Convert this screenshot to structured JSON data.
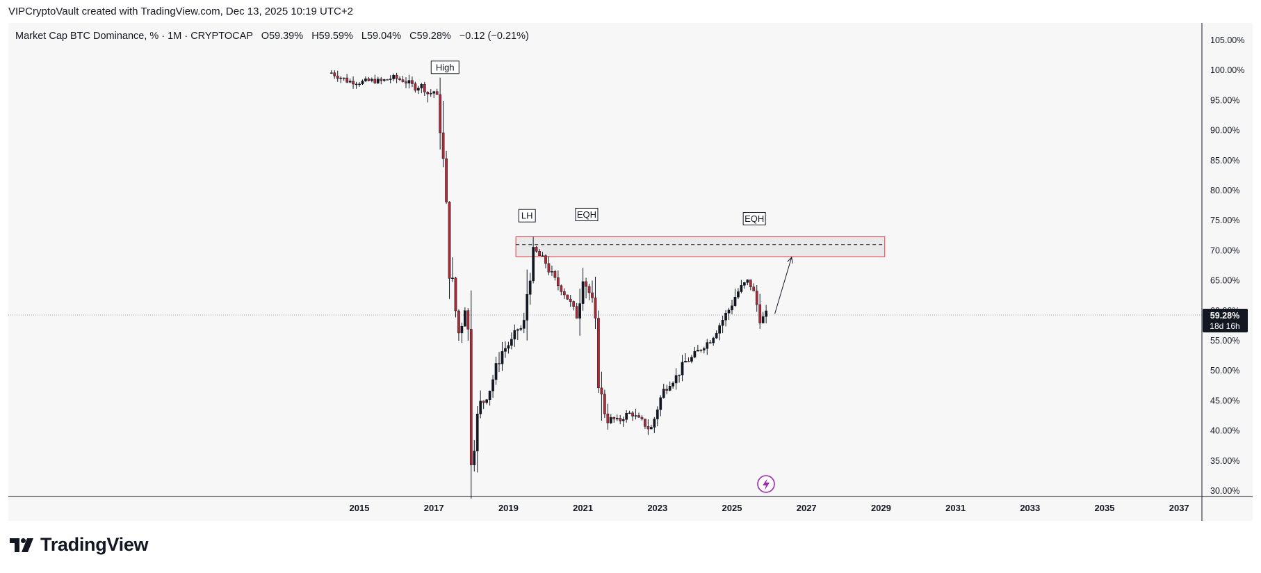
{
  "header": {
    "attribution": "VIPCryptoVault created with TradingView.com, Dec 13, 2025 10:19 UTC+2"
  },
  "legend": {
    "symbol": "Market Cap BTC Dominance, % · 1M · CRYPTOCAP",
    "open": "O59.39%",
    "high": "H59.59%",
    "low": "L59.04%",
    "close": "C59.28%",
    "change": "−0.12 (−0.21%)"
  },
  "price_label": {
    "value": "59.28%",
    "countdown": "18d 16h"
  },
  "brand": {
    "name": "TradingView",
    "logo_icon": "tradingview-logo-icon"
  },
  "colors": {
    "up": "#131722",
    "down": "#b22833",
    "zone_border": "#e03b44",
    "background": "#f7f7f7"
  },
  "chart_data": {
    "type": "candlestick",
    "title": "",
    "xlabel": "",
    "ylabel": "",
    "xlim": [
      2013.6,
      2037.6
    ],
    "ylim": [
      29.5,
      107
    ],
    "x_ticks": [
      "2015",
      "2017",
      "2019",
      "2021",
      "2023",
      "2025",
      "2027",
      "2029",
      "2031",
      "2033",
      "2035",
      "2037"
    ],
    "y_ticks": [
      "105.00%",
      "100.00%",
      "95.00%",
      "90.00%",
      "85.00%",
      "80.00%",
      "75.00%",
      "70.00%",
      "65.00%",
      "60.00%",
      "55.00%",
      "50.00%",
      "45.00%",
      "40.00%",
      "35.00%",
      "30.00%"
    ],
    "last_close": 59.28,
    "path": [
      [
        2014.25,
        99.6
      ],
      [
        2014.45,
        99.0
      ],
      [
        2014.7,
        98.2
      ],
      [
        2015.0,
        98.0
      ],
      [
        2015.3,
        98.3
      ],
      [
        2015.6,
        98.2
      ],
      [
        2015.9,
        98.8
      ],
      [
        2016.2,
        98.3
      ],
      [
        2016.5,
        97.2
      ],
      [
        2016.7,
        97.5
      ],
      [
        2016.85,
        96.0
      ],
      [
        2017.0,
        96.5
      ],
      [
        2017.13,
        94.5
      ],
      [
        2017.2,
        88.0
      ],
      [
        2017.28,
        82.0
      ],
      [
        2017.36,
        72.0
      ],
      [
        2017.45,
        66.0
      ],
      [
        2017.55,
        62.0
      ],
      [
        2017.65,
        56.0
      ],
      [
        2017.75,
        58.0
      ],
      [
        2017.85,
        62.0
      ],
      [
        2017.92,
        56.0
      ],
      [
        2018.0,
        40.0
      ],
      [
        2018.1,
        37.5
      ],
      [
        2018.2,
        44.0
      ],
      [
        2018.35,
        45.0
      ],
      [
        2018.5,
        47.0
      ],
      [
        2018.65,
        50.0
      ],
      [
        2018.8,
        53.0
      ],
      [
        2018.95,
        54.0
      ],
      [
        2019.1,
        55.0
      ],
      [
        2019.25,
        57.0
      ],
      [
        2019.4,
        57.0
      ],
      [
        2019.5,
        63.0
      ],
      [
        2019.6,
        67.5
      ],
      [
        2019.7,
        70.0
      ],
      [
        2019.85,
        69.0
      ],
      [
        2020.0,
        68.0
      ],
      [
        2020.15,
        66.0
      ],
      [
        2020.3,
        64.5
      ],
      [
        2020.45,
        63.5
      ],
      [
        2020.6,
        62.0
      ],
      [
        2020.75,
        60.0
      ],
      [
        2020.85,
        59.0
      ],
      [
        2021.0,
        67.0
      ],
      [
        2021.1,
        64.0
      ],
      [
        2021.2,
        62.5
      ],
      [
        2021.3,
        60.0
      ],
      [
        2021.38,
        52.0
      ],
      [
        2021.5,
        45.0
      ],
      [
        2021.65,
        42.0
      ],
      [
        2021.8,
        42.0
      ],
      [
        2021.95,
        41.5
      ],
      [
        2022.1,
        42.5
      ],
      [
        2022.3,
        43.0
      ],
      [
        2022.45,
        42.0
      ],
      [
        2022.6,
        41.5
      ],
      [
        2022.75,
        40.5
      ],
      [
        2022.85,
        40.5
      ],
      [
        2023.0,
        44.0
      ],
      [
        2023.15,
        46.5
      ],
      [
        2023.3,
        48.0
      ],
      [
        2023.45,
        48.5
      ],
      [
        2023.6,
        50.0
      ],
      [
        2023.75,
        51.5
      ],
      [
        2023.9,
        52.0
      ],
      [
        2024.05,
        53.0
      ],
      [
        2024.2,
        54.0
      ],
      [
        2024.4,
        55.0
      ],
      [
        2024.6,
        57.0
      ],
      [
        2024.8,
        59.0
      ],
      [
        2024.95,
        60.5
      ],
      [
        2025.05,
        62.0
      ],
      [
        2025.2,
        63.5
      ],
      [
        2025.35,
        64.5
      ],
      [
        2025.45,
        65.0
      ],
      [
        2025.55,
        63.5
      ],
      [
        2025.65,
        61.5
      ],
      [
        2025.72,
        59.5
      ],
      [
        2025.8,
        58.5
      ],
      [
        2025.9,
        59.4
      ],
      [
        2025.96,
        59.28
      ]
    ],
    "annotations": [
      {
        "text": "High",
        "x": 2017.3,
        "y": 99.7
      },
      {
        "text": "LH",
        "x": 2019.5,
        "y": 75.0
      },
      {
        "text": "EQH",
        "x": 2021.1,
        "y": 75.2
      },
      {
        "text": "EQH",
        "x": 2025.6,
        "y": 74.5
      }
    ],
    "zone": {
      "x_start": 2019.2,
      "x_end": 2029.1,
      "y_low": 69.0,
      "y_high": 72.3,
      "midline": 71.0
    },
    "arrow": {
      "from": [
        2026.15,
        59.5
      ],
      "to": [
        2026.6,
        68.9
      ]
    },
    "price_line": 59.28
  }
}
